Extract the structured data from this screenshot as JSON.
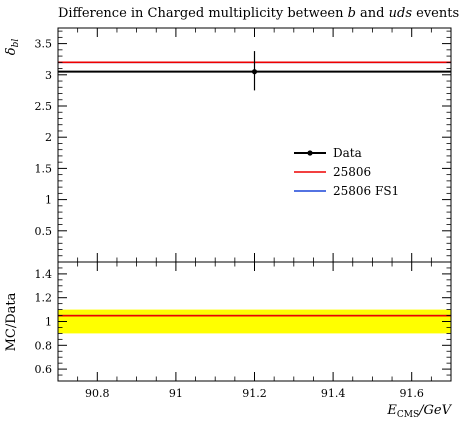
{
  "title": {
    "pre": "Difference in Charged multiplicity between ",
    "b": "b",
    "mid": " and ",
    "uds": "uds",
    "post": " events"
  },
  "xaxis_label": {
    "main": "E",
    "sub": "CMS",
    "rest": "/GeV"
  },
  "chart_data": [
    {
      "type": "line",
      "panel": "main",
      "ylabel": "δbl",
      "ylabel_main": "δ",
      "ylabel_sub": "bl",
      "xlim": [
        90.7,
        91.7
      ],
      "ylim": [
        0,
        3.75
      ],
      "yticks": [
        0.5,
        1,
        1.5,
        2,
        2.5,
        3,
        3.5
      ],
      "ytick_labels": [
        "0.5",
        "1",
        "1.5",
        "2",
        "2.5",
        "3",
        "3.5"
      ],
      "data_point": {
        "x": 91.2,
        "y": 3.05,
        "err_low": 0.3,
        "err_high": 0.33
      },
      "series": [
        {
          "name": "Data",
          "kind": "points",
          "color": "#000000",
          "x": [
            90.7,
            91.7
          ],
          "y": [
            3.05,
            3.05
          ]
        },
        {
          "name": "25806",
          "kind": "line",
          "color": "#ee0000",
          "x": [
            90.7,
            91.7
          ],
          "y": [
            3.2,
            3.2
          ]
        },
        {
          "name": "25806 FS1",
          "kind": "line",
          "color": "#1a45d8",
          "x": [
            90.7,
            91.7
          ],
          "y": [
            3.2,
            3.2
          ]
        }
      ],
      "legend": {
        "placement": "center-right"
      }
    },
    {
      "type": "line",
      "panel": "ratio",
      "ylabel": "MC/Data",
      "xlim": [
        90.7,
        91.7
      ],
      "ylim": [
        0.5,
        1.5
      ],
      "yticks": [
        0.6,
        0.8,
        1,
        1.2,
        1.4
      ],
      "ytick_labels": [
        "0.6",
        "0.8",
        "1",
        "1.2",
        "1.4"
      ],
      "xticks": [
        90.8,
        91,
        91.2,
        91.4,
        91.6
      ],
      "xtick_labels": [
        "90.8",
        "91",
        "91.2",
        "91.4",
        "91.6"
      ],
      "band": {
        "low": 0.9,
        "high": 1.1,
        "color": "#ffff00"
      },
      "series": [
        {
          "name": "25806",
          "color": "#ee0000",
          "x": [
            90.7,
            91.7
          ],
          "y": [
            1.049,
            1.049
          ]
        },
        {
          "name": "25806 FS1",
          "color": "#1a45d8",
          "x": [
            90.7,
            91.7
          ],
          "y": [
            1.049,
            1.049
          ]
        }
      ]
    }
  ]
}
